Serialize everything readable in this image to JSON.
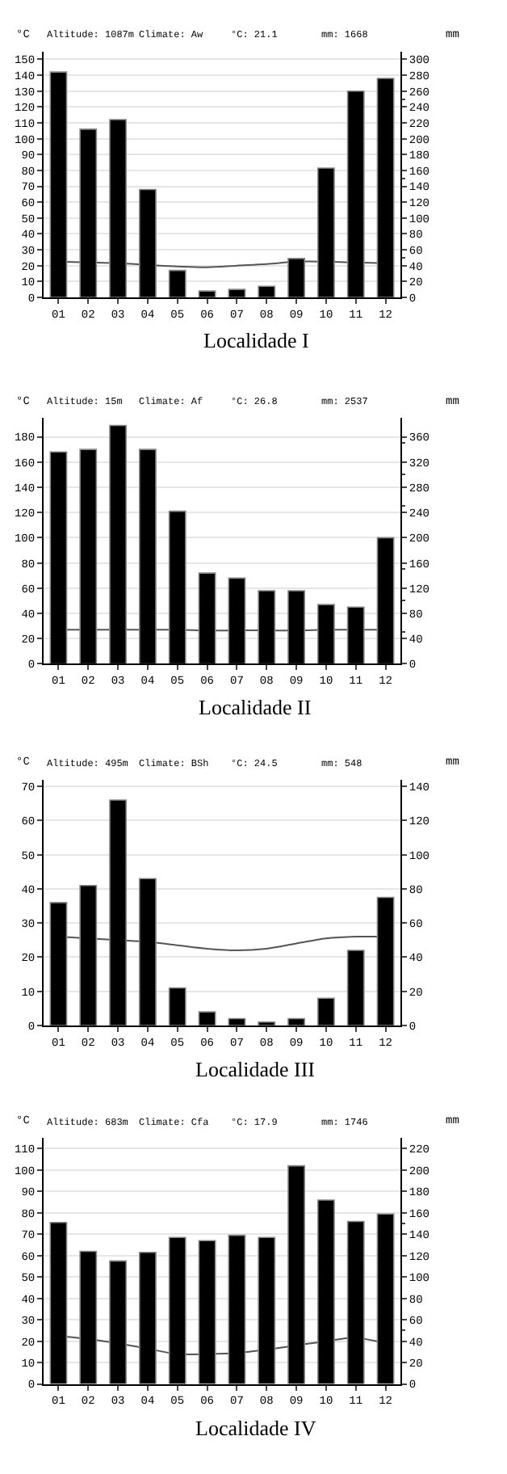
{
  "chart_data": [
    {
      "type": "bar",
      "title": "Localidade I",
      "ylabel": "°C",
      "y2label": "mm",
      "annotations": [
        "Altitude: 1087m",
        "Climate: Aw",
        "°C: 21.1",
        "mm: 1668"
      ],
      "categories": [
        "01",
        "02",
        "03",
        "04",
        "05",
        "06",
        "07",
        "08",
        "09",
        "10",
        "11",
        "12"
      ],
      "series": [
        {
          "axis": "y2",
          "color": "#000000",
          "values": [
            284,
            212,
            224,
            136,
            34,
            8,
            10,
            14,
            49,
            163,
            260,
            276
          ]
        },
        {
          "type": "line",
          "axis": "y",
          "color": "#555555",
          "values": [
            22.5,
            22,
            21.5,
            20.5,
            19.5,
            19,
            20,
            21,
            22.5,
            22.5,
            22,
            21.5
          ]
        }
      ],
      "ylim": [
        0,
        155
      ],
      "yticks": [
        0,
        10,
        20,
        30,
        40,
        50,
        60,
        70,
        80,
        90,
        100,
        110,
        120,
        130,
        140,
        150
      ],
      "y2lim": [
        0,
        310
      ],
      "y2ticks": [
        0,
        20,
        40,
        60,
        80,
        100,
        120,
        140,
        160,
        180,
        200,
        220,
        240,
        260,
        280,
        300
      ],
      "grid": "y"
    },
    {
      "type": "bar",
      "title": "Localidade II",
      "ylabel": "°C",
      "y2label": "mm",
      "annotations": [
        "Altitude: 15m",
        "Climate: Af",
        "°C: 26.8",
        "mm: 2537"
      ],
      "categories": [
        "01",
        "02",
        "03",
        "04",
        "05",
        "06",
        "07",
        "08",
        "09",
        "10",
        "11",
        "12"
      ],
      "series": [
        {
          "axis": "y2",
          "color": "#000000",
          "values": [
            336,
            340,
            378,
            340,
            242,
            144,
            136,
            116,
            116,
            94,
            90,
            200
          ]
        },
        {
          "type": "line",
          "axis": "y",
          "color": "#555555",
          "values": [
            27,
            27,
            27,
            27,
            27,
            26.5,
            26.5,
            26.5,
            26.5,
            27,
            27,
            27
          ]
        }
      ],
      "ylim": [
        0,
        195
      ],
      "yticks": [
        0,
        20,
        40,
        60,
        80,
        100,
        120,
        140,
        160,
        180
      ],
      "y2lim": [
        0,
        390
      ],
      "y2ticks": [
        0,
        40,
        80,
        120,
        160,
        200,
        240,
        280,
        320,
        360
      ],
      "grid": "y"
    },
    {
      "type": "bar",
      "title": "Localidade III",
      "ylabel": "°C",
      "y2label": "mm",
      "annotations": [
        "Altitude: 495m",
        "Climate: BSh",
        "°C: 24.5",
        "mm: 548"
      ],
      "categories": [
        "01",
        "02",
        "03",
        "04",
        "05",
        "06",
        "07",
        "08",
        "09",
        "10",
        "11",
        "12"
      ],
      "series": [
        {
          "axis": "y2",
          "color": "#000000",
          "values": [
            72,
            82,
            132,
            86,
            22,
            8,
            4,
            2,
            4,
            16,
            44,
            75
          ]
        },
        {
          "type": "line",
          "axis": "y",
          "color": "#555555",
          "values": [
            26,
            25.5,
            25,
            24.5,
            23.5,
            22.5,
            22,
            22.5,
            24,
            25.5,
            26,
            26
          ]
        }
      ],
      "ylim": [
        0,
        72
      ],
      "yticks": [
        0,
        10,
        20,
        30,
        40,
        50,
        60,
        70
      ],
      "y2lim": [
        0,
        144
      ],
      "y2ticks": [
        0,
        20,
        40,
        60,
        80,
        100,
        120,
        140
      ],
      "grid": "y"
    },
    {
      "type": "bar",
      "title": "Localidade IV",
      "ylabel": "°C",
      "y2label": "mm",
      "annotations": [
        "Altitude: 683m",
        "Climate: Cfa",
        "°C: 17.9",
        "mm: 1746"
      ],
      "categories": [
        "01",
        "02",
        "03",
        "04",
        "05",
        "06",
        "07",
        "08",
        "09",
        "10",
        "11",
        "12"
      ],
      "series": [
        {
          "axis": "y2",
          "color": "#000000",
          "values": [
            151,
            124,
            115,
            123,
            137,
            134,
            139,
            137,
            204,
            172,
            152,
            159
          ]
        },
        {
          "type": "line",
          "axis": "y",
          "color": "#555555",
          "values": [
            22.5,
            21,
            19,
            16.5,
            14,
            14,
            14.5,
            16,
            18,
            20,
            21.5,
            19
          ]
        }
      ],
      "ylim": [
        0,
        115
      ],
      "yticks": [
        0,
        10,
        20,
        30,
        40,
        50,
        60,
        70,
        80,
        90,
        100,
        110
      ],
      "y2lim": [
        0,
        230
      ],
      "y2ticks": [
        0,
        20,
        40,
        60,
        80,
        100,
        120,
        140,
        160,
        180,
        200,
        220
      ],
      "grid": "y"
    }
  ]
}
